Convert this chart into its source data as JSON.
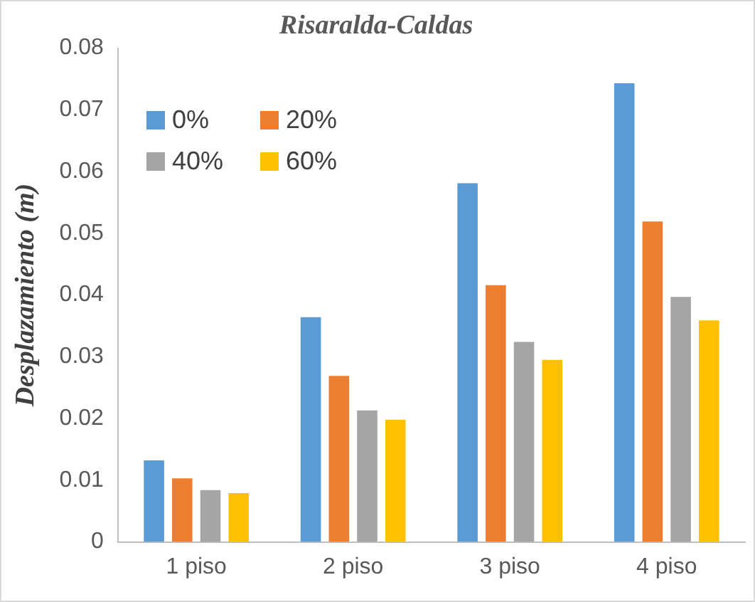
{
  "chart_data": {
    "type": "bar",
    "title": "Risaralda-Caldas",
    "ylabel": "Desplazamiento (m)",
    "categories": [
      "1 piso",
      "2 piso",
      "3 piso",
      "4 piso"
    ],
    "series": [
      {
        "name": "0%",
        "color": "#5b9bd5",
        "values": [
          0.0132,
          0.0364,
          0.0581,
          0.0743
        ]
      },
      {
        "name": "20%",
        "color": "#ed7d31",
        "values": [
          0.0103,
          0.0269,
          0.0416,
          0.0519
        ]
      },
      {
        "name": "40%",
        "color": "#a5a5a5",
        "values": [
          0.0084,
          0.0213,
          0.0324,
          0.0397
        ]
      },
      {
        "name": "60%",
        "color": "#ffc000",
        "values": [
          0.0079,
          0.0198,
          0.0295,
          0.0359
        ]
      }
    ],
    "ylim": [
      0,
      0.08
    ],
    "yticks": [
      0,
      0.01,
      0.02,
      0.03,
      0.04,
      0.05,
      0.06,
      0.07,
      0.08
    ],
    "grid": false,
    "legend": "top left"
  }
}
